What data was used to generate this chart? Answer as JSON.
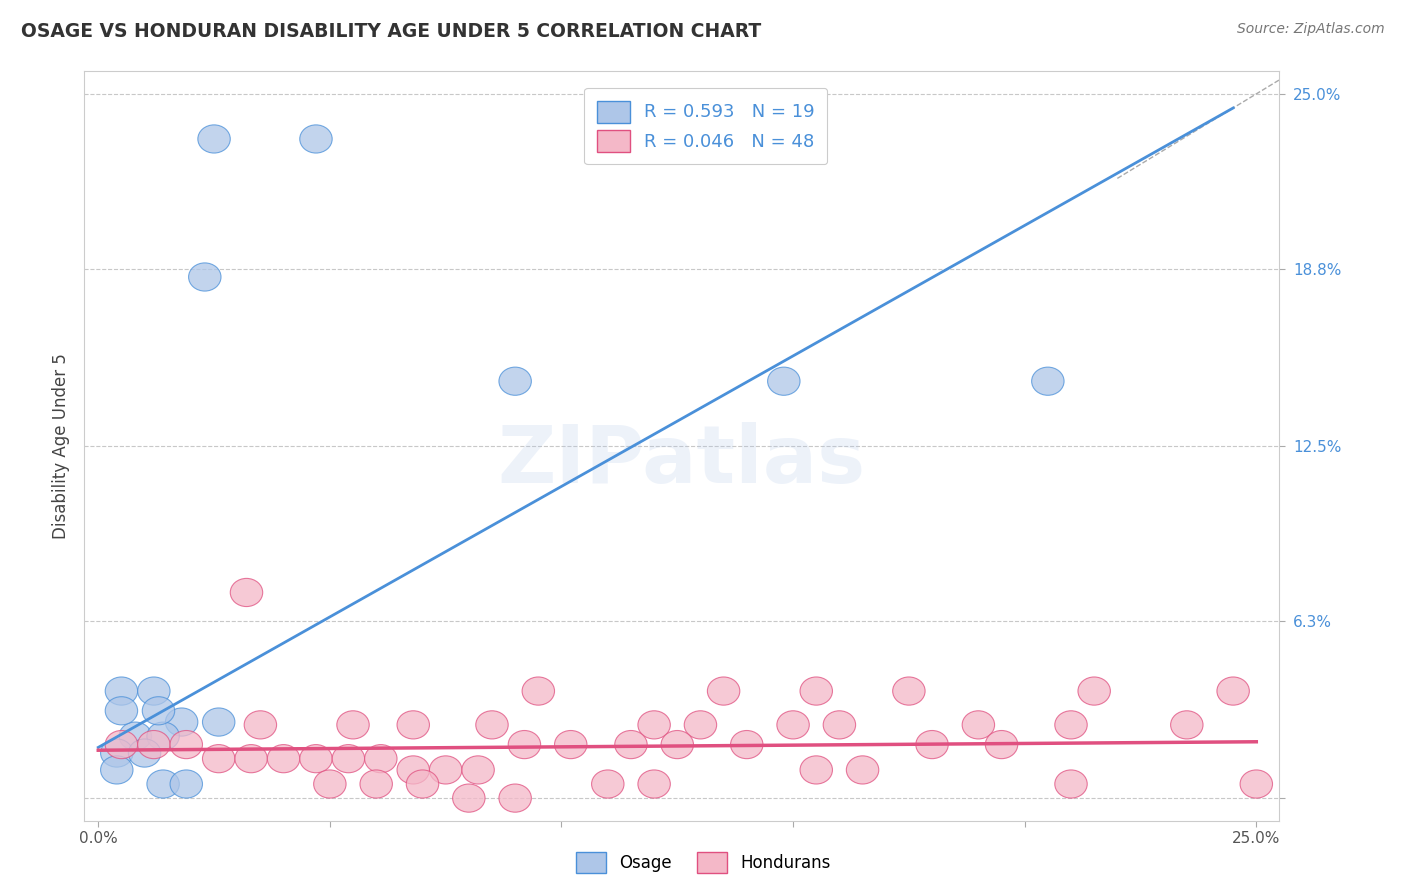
{
  "title": "OSAGE VS HONDURAN DISABILITY AGE UNDER 5 CORRELATION CHART",
  "source": "Source: ZipAtlas.com",
  "ylabel": "Disability Age Under 5",
  "xlim": [
    0.0,
    0.25
  ],
  "ylim": [
    0.0,
    0.25
  ],
  "y_ticks": [
    0.0,
    0.063,
    0.125,
    0.188,
    0.25
  ],
  "y_tick_labels": [
    "",
    "6.3%",
    "12.5%",
    "18.8%",
    "25.0%"
  ],
  "background_color": "#ffffff",
  "plot_bg_color": "#ffffff",
  "grid_color": "#c8c8c8",
  "osage_color": "#aec6e8",
  "honduran_color": "#f4b8c8",
  "osage_line_color": "#4a90d9",
  "honduran_line_color": "#e05080",
  "osage_R": 0.593,
  "osage_N": 19,
  "honduran_R": 0.046,
  "honduran_N": 48,
  "osage_line": [
    [
      0.0,
      0.018
    ],
    [
      0.245,
      0.245
    ]
  ],
  "honduran_line": [
    [
      0.0,
      0.017
    ],
    [
      0.25,
      0.02
    ]
  ],
  "osage_points": [
    [
      0.025,
      0.234
    ],
    [
      0.047,
      0.234
    ],
    [
      0.023,
      0.185
    ],
    [
      0.09,
      0.148
    ],
    [
      0.148,
      0.148
    ],
    [
      0.205,
      0.148
    ],
    [
      0.005,
      0.038
    ],
    [
      0.012,
      0.038
    ],
    [
      0.018,
      0.027
    ],
    [
      0.026,
      0.027
    ],
    [
      0.008,
      0.022
    ],
    [
      0.014,
      0.022
    ],
    [
      0.004,
      0.016
    ],
    [
      0.01,
      0.016
    ],
    [
      0.004,
      0.01
    ],
    [
      0.014,
      0.005
    ],
    [
      0.019,
      0.005
    ],
    [
      0.005,
      0.031
    ],
    [
      0.013,
      0.031
    ]
  ],
  "honduran_points": [
    [
      0.032,
      0.073
    ],
    [
      0.095,
      0.038
    ],
    [
      0.135,
      0.038
    ],
    [
      0.155,
      0.038
    ],
    [
      0.175,
      0.038
    ],
    [
      0.215,
      0.038
    ],
    [
      0.245,
      0.038
    ],
    [
      0.25,
      0.005
    ],
    [
      0.12,
      0.026
    ],
    [
      0.13,
      0.026
    ],
    [
      0.19,
      0.026
    ],
    [
      0.21,
      0.026
    ],
    [
      0.235,
      0.026
    ],
    [
      0.035,
      0.026
    ],
    [
      0.055,
      0.026
    ],
    [
      0.068,
      0.026
    ],
    [
      0.085,
      0.026
    ],
    [
      0.092,
      0.019
    ],
    [
      0.102,
      0.019
    ],
    [
      0.115,
      0.019
    ],
    [
      0.125,
      0.019
    ],
    [
      0.14,
      0.019
    ],
    [
      0.15,
      0.026
    ],
    [
      0.16,
      0.026
    ],
    [
      0.18,
      0.019
    ],
    [
      0.005,
      0.019
    ],
    [
      0.012,
      0.019
    ],
    [
      0.019,
      0.019
    ],
    [
      0.026,
      0.014
    ],
    [
      0.033,
      0.014
    ],
    [
      0.04,
      0.014
    ],
    [
      0.047,
      0.014
    ],
    [
      0.054,
      0.014
    ],
    [
      0.061,
      0.014
    ],
    [
      0.068,
      0.01
    ],
    [
      0.075,
      0.01
    ],
    [
      0.082,
      0.01
    ],
    [
      0.05,
      0.005
    ],
    [
      0.06,
      0.005
    ],
    [
      0.07,
      0.005
    ],
    [
      0.08,
      0.0
    ],
    [
      0.09,
      0.0
    ],
    [
      0.11,
      0.005
    ],
    [
      0.12,
      0.005
    ],
    [
      0.155,
      0.01
    ],
    [
      0.165,
      0.01
    ],
    [
      0.195,
      0.019
    ],
    [
      0.21,
      0.005
    ]
  ]
}
